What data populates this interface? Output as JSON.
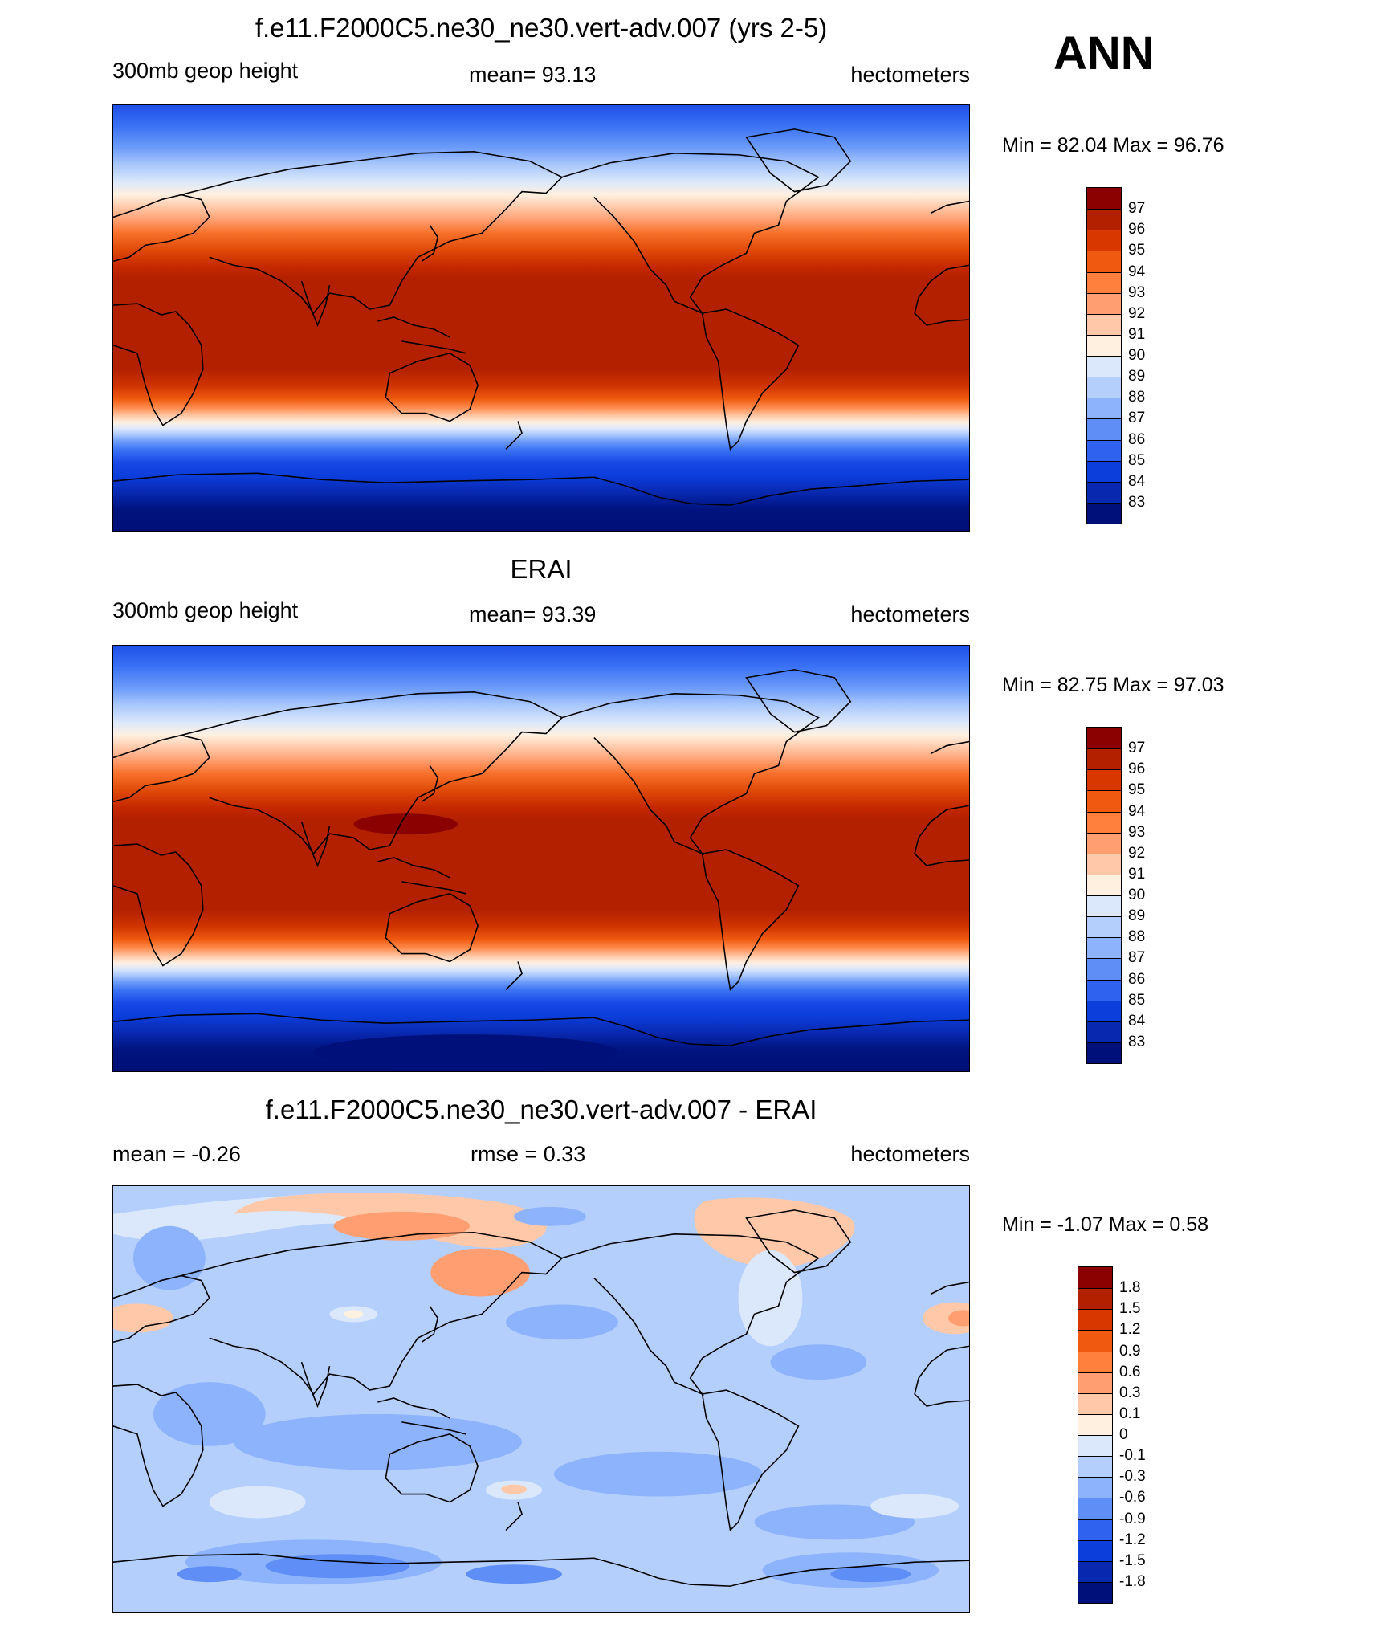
{
  "season": "ANN",
  "panels": [
    {
      "id": "model",
      "title": "f.e11.F2000C5.ne30_ne30.vert-adv.007 (yrs 2-5)",
      "left_label": "300mb geop height",
      "center_label": "mean=  93.13",
      "right_label": "hectometers",
      "minmax": "Min =  82.04 Max =  96.76",
      "colorbar_labels": [
        "97",
        "96",
        "95",
        "94",
        "93",
        "92",
        "91",
        "90",
        "89",
        "88",
        "87",
        "86",
        "85",
        "84",
        "83"
      ],
      "colorbar_colors": [
        "#8b0000",
        "#b22000",
        "#d83800",
        "#f05a10",
        "#ff7f3c",
        "#ff9e70",
        "#ffc8a8",
        "#fff0e0",
        "#dbe8fb",
        "#b5cffc",
        "#8db3fc",
        "#5f8ef6",
        "#2e62ef",
        "#0c3edc",
        "#0828b0",
        "#00107a"
      ]
    },
    {
      "id": "obs",
      "title": "ERAI",
      "left_label": "300mb geop height",
      "center_label": "mean=  93.39",
      "right_label": "hectometers",
      "minmax": "Min =  82.75 Max =  97.03",
      "colorbar_labels": [
        "97",
        "96",
        "95",
        "94",
        "93",
        "92",
        "91",
        "90",
        "89",
        "88",
        "87",
        "86",
        "85",
        "84",
        "83"
      ],
      "colorbar_colors": [
        "#8b0000",
        "#b22000",
        "#d83800",
        "#f05a10",
        "#ff7f3c",
        "#ff9e70",
        "#ffc8a8",
        "#fff0e0",
        "#dbe8fb",
        "#b5cffc",
        "#8db3fc",
        "#5f8ef6",
        "#2e62ef",
        "#0c3edc",
        "#0828b0",
        "#00107a"
      ]
    },
    {
      "id": "diff",
      "title": "f.e11.F2000C5.ne30_ne30.vert-adv.007 - ERAI",
      "left_label": "mean =  -0.26",
      "center_label": "rmse =   0.33",
      "right_label": "hectometers",
      "minmax": "Min =  -1.07 Max =   0.58",
      "colorbar_labels": [
        "1.8",
        "1.5",
        "1.2",
        "0.9",
        "0.6",
        "0.3",
        "0.1",
        "0",
        "-0.1",
        "-0.3",
        "-0.6",
        "-0.9",
        "-1.2",
        "-1.5",
        "-1.8"
      ],
      "colorbar_colors": [
        "#8b0000",
        "#b22000",
        "#d83800",
        "#f05a10",
        "#ff7f3c",
        "#ff9e70",
        "#ffc8a8",
        "#fff0e0",
        "#dbe8fb",
        "#b5cffc",
        "#8db3fc",
        "#5f8ef6",
        "#2e62ef",
        "#0c3edc",
        "#0828b0",
        "#00107a"
      ]
    }
  ]
}
